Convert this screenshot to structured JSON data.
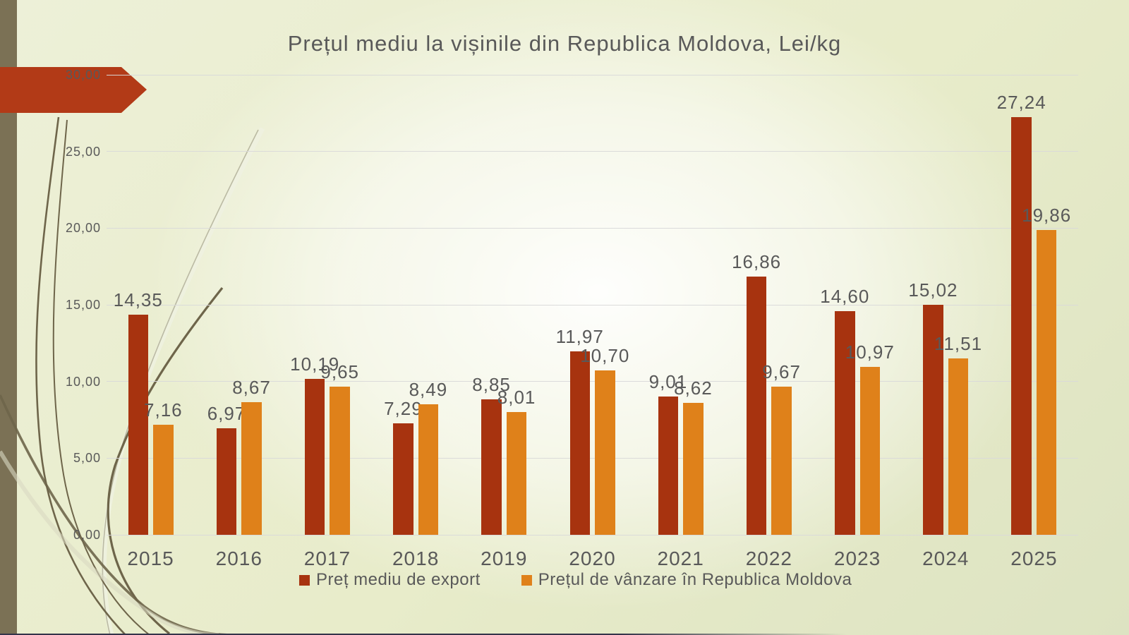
{
  "chart_data": {
    "type": "bar",
    "title": "Prețul mediu la vișinile din Republica Moldova, Lei/kg",
    "unit": "Lei/kg",
    "categories": [
      "2015",
      "2016",
      "2017",
      "2018",
      "2019",
      "2020",
      "2021",
      "2022",
      "2023",
      "2024",
      "2025"
    ],
    "series": [
      {
        "name": "Preț mediu de export",
        "color": "#a7330f",
        "values": [
          14.35,
          6.97,
          10.19,
          7.29,
          8.85,
          11.97,
          9.01,
          16.86,
          14.6,
          15.02,
          27.24
        ],
        "labels": [
          "14,35",
          "6,97",
          "10,19",
          "7,29",
          "8,85",
          "11,97",
          "9,01",
          "16,86",
          "14,60",
          "15,02",
          "27,24"
        ]
      },
      {
        "name": "Prețul de vânzare în Republica Moldova",
        "color": "#df811a",
        "values": [
          7.16,
          8.67,
          9.65,
          8.49,
          8.01,
          10.7,
          8.62,
          9.67,
          10.97,
          11.51,
          19.86
        ],
        "labels": [
          "7,16",
          "8,67",
          "9,65",
          "8,49",
          "8,01",
          "10,70",
          "8,62",
          "9,67",
          "10,97",
          "11,51",
          "19,86"
        ]
      }
    ],
    "ylim": [
      0,
      30
    ],
    "ytick_step": 5,
    "ytick_labels": [
      "0,00",
      "5,00",
      "10,00",
      "15,00",
      "20,00",
      "25,00",
      "30,00"
    ],
    "grid": true,
    "legend_position": "bottom",
    "decimal_separator": ","
  },
  "colors": {
    "title_text": "#595959",
    "axis_text": "#595959",
    "gridline": "#d9d9d9",
    "sidebar_stripe": "#7b7155",
    "arrow_banner": "#b23a17",
    "background_edge": "#dde3c2",
    "background_center": "#fafaf2",
    "bottom_edge": "#34344a"
  }
}
